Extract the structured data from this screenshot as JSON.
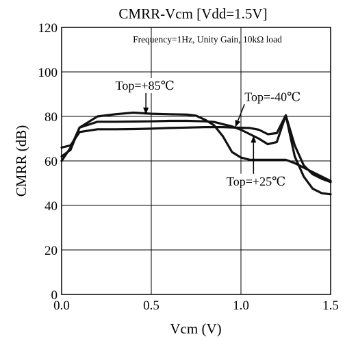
{
  "chart_data": {
    "type": "line",
    "title": "CMRR-Vcm [Vdd=1.5V]",
    "subtitle": "Frequency=1Hz, Unity Gain, 10kΩ load",
    "xlabel": "Vcm (V)",
    "ylabel": "CMRR (dB)",
    "xlim": [
      0.0,
      1.5
    ],
    "ylim": [
      0,
      120
    ],
    "x_ticks": [
      "0.0",
      "0.5",
      "1.0",
      "1.5"
    ],
    "y_ticks": [
      "0",
      "20",
      "40",
      "60",
      "80",
      "100",
      "120"
    ],
    "grid": true,
    "series": [
      {
        "name": "Top=+85℃",
        "color": "#111111",
        "x": [
          0.0,
          0.05,
          0.1,
          0.2,
          0.3,
          0.4,
          0.5,
          0.6,
          0.7,
          0.75,
          0.8,
          0.85,
          0.9,
          0.95,
          1.0,
          1.05,
          1.1,
          1.2,
          1.25,
          1.3,
          1.35,
          1.4,
          1.45,
          1.5
        ],
        "y": [
          60,
          66,
          75,
          80,
          81,
          81.7,
          81.2,
          81,
          80.8,
          80.3,
          78.5,
          76,
          71,
          64,
          61.5,
          60.5,
          60.5,
          60.5,
          60.5,
          59,
          57,
          55,
          53,
          51
        ]
      },
      {
        "name": "Top=-40℃",
        "color": "#111111",
        "x": [
          0.0,
          0.05,
          0.1,
          0.2,
          0.3,
          0.4,
          0.5,
          0.6,
          0.7,
          0.8,
          0.9,
          1.0,
          1.05,
          1.1,
          1.15,
          1.2,
          1.25,
          1.3,
          1.35,
          1.4,
          1.45,
          1.5
        ],
        "y": [
          66,
          67,
          73,
          74.2,
          74.2,
          74.3,
          74.5,
          74.8,
          75,
          75.2,
          75.2,
          74.9,
          74.8,
          74,
          72,
          72.5,
          80.5,
          67,
          58,
          54,
          52,
          50.5
        ]
      },
      {
        "name": "Top=+25℃",
        "color": "#111111",
        "x": [
          0.0,
          0.05,
          0.1,
          0.2,
          0.3,
          0.4,
          0.5,
          0.6,
          0.7,
          0.8,
          0.85,
          0.9,
          0.95,
          1.0,
          1.05,
          1.1,
          1.15,
          1.2,
          1.25,
          1.3,
          1.35,
          1.4,
          1.45,
          1.5
        ],
        "y": [
          62,
          65,
          75,
          77.6,
          77.6,
          77.7,
          77.8,
          78,
          78,
          77.8,
          77.5,
          76.5,
          75.5,
          74,
          72,
          70,
          67.5,
          68.5,
          80.5,
          62,
          53,
          47.5,
          45.5,
          45
        ]
      }
    ],
    "annotations": [
      {
        "label": "Top=+85℃",
        "series": "Top=+85℃",
        "text_at": [
          0.3,
          92
        ],
        "arrow_to": [
          0.47,
          81.2
        ]
      },
      {
        "label": "Top=-40℃",
        "series": "Top=-40℃",
        "text_at": [
          1.02,
          87
        ],
        "arrow_to": [
          0.97,
          75.5
        ]
      },
      {
        "label": "Top=+25℃",
        "series": "Top=+25℃",
        "text_at": [
          0.92,
          49
        ],
        "arrow_to": [
          1.07,
          71
        ]
      }
    ]
  }
}
